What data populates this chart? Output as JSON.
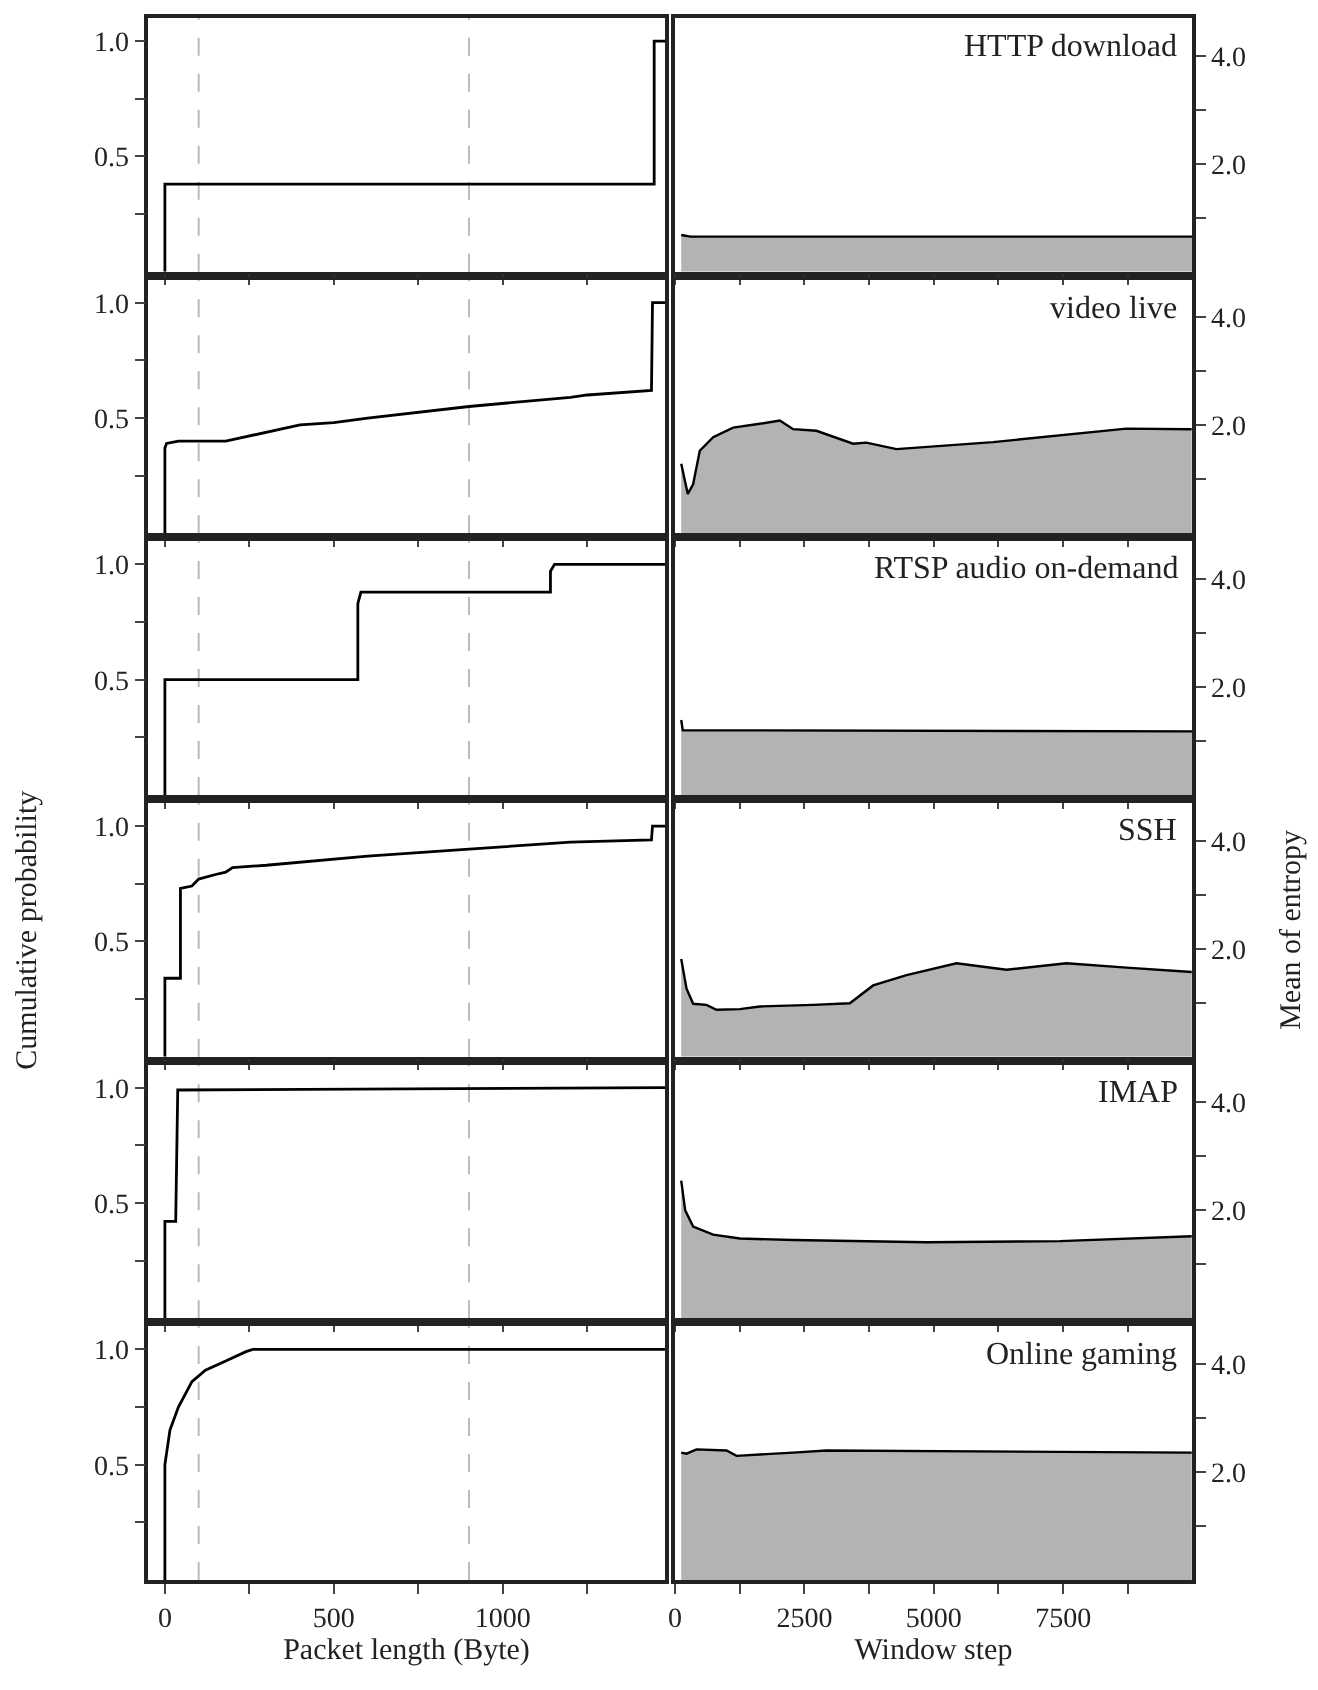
{
  "chart_data": [
    {
      "type": "line",
      "x": [
        0,
        0,
        1448,
        1448,
        1480
      ],
      "values": [
        0,
        0.38,
        0.38,
        1.0,
        1.0
      ],
      "color": "#000000",
      "xlim": [
        -50,
        1480
      ],
      "xticks": [
        0,
        500,
        1000,
        {
          "value": 250,
          "label": null
        },
        {
          "value": 750,
          "label": null
        },
        {
          "value": 1250,
          "label": null
        }
      ],
      "ylim": [
        0,
        1.1
      ],
      "yticks": [
        {
          "value": 0.5,
          "label": "0.5"
        },
        {
          "value": 1,
          "label": "1.0"
        },
        {
          "value": 0.25,
          "label": null
        },
        {
          "value": 0.75,
          "label": null
        }
      ],
      "ref_lines": [
        {
          "axis": "x",
          "value": 100,
          "color": "#bbbbbb",
          "line_style": "dashed"
        },
        {
          "axis": "x",
          "value": 900,
          "color": "#bbbbbb",
          "line_style": "dashed"
        }
      ],
      "tick_labels": "y"
    },
    {
      "type": "area",
      "title": "HTTP download",
      "x": [
        120,
        300,
        9990
      ],
      "values": [
        0.68,
        0.65,
        0.65
      ],
      "color": "#b3b3b3",
      "xlim": [
        0,
        9990
      ],
      "xticks": [
        0,
        2500,
        5000,
        7500,
        {
          "value": 1250,
          "label": null
        },
        {
          "value": 3750,
          "label": null
        },
        {
          "value": 6250,
          "label": null
        },
        {
          "value": 8750,
          "label": null
        }
      ],
      "ylim": [
        0,
        4.7
      ],
      "yticks": [
        {
          "value": 2,
          "label": "2.0"
        },
        {
          "value": 4,
          "label": "4.0"
        },
        {
          "value": 1,
          "label": null
        },
        {
          "value": 3,
          "label": null
        }
      ],
      "tick_labels": "y"
    },
    {
      "type": "line",
      "x": [
        0,
        0,
        5,
        40,
        180,
        400,
        500,
        600,
        900,
        1200,
        1250,
        1440,
        1443,
        1480
      ],
      "values": [
        0,
        0.37,
        0.39,
        0.4,
        0.4,
        0.47,
        0.48,
        0.5,
        0.55,
        0.59,
        0.6,
        0.62,
        1.0,
        1.0
      ],
      "color": "#000000",
      "xlim": [
        -50,
        1480
      ],
      "xticks": [
        0,
        500,
        1000,
        {
          "value": 250,
          "label": null
        },
        {
          "value": 750,
          "label": null
        },
        {
          "value": 1250,
          "label": null
        }
      ],
      "ylim": [
        0,
        1.1
      ],
      "yticks": [
        {
          "value": 0.5,
          "label": "0.5"
        },
        {
          "value": 1,
          "label": "1.0"
        },
        {
          "value": 0.25,
          "label": null
        },
        {
          "value": 0.75,
          "label": null
        }
      ],
      "ref_lines": [
        {
          "axis": "x",
          "value": 100,
          "color": "#bbbbbb",
          "line_style": "dashed"
        },
        {
          "axis": "x",
          "value": 900,
          "color": "#bbbbbb",
          "line_style": "dashed"
        }
      ],
      "tick_labels": "y"
    },
    {
      "type": "area",
      "title": "video live",
      "x": [
        120,
        247,
        350,
        479,
        737,
        1123,
        1638,
        2025,
        2282,
        2733,
        3441,
        3699,
        4278,
        6146,
        8722,
        9984
      ],
      "values": [
        1.29,
        0.73,
        0.91,
        1.53,
        1.78,
        1.96,
        2.03,
        2.09,
        1.93,
        1.9,
        1.66,
        1.68,
        1.56,
        1.69,
        1.94,
        1.93
      ],
      "color": "#b3b3b3",
      "xlim": [
        0,
        9990
      ],
      "xticks": [
        0,
        2500,
        5000,
        7500,
        {
          "value": 1250,
          "label": null
        },
        {
          "value": 3750,
          "label": null
        },
        {
          "value": 6250,
          "label": null
        },
        {
          "value": 8750,
          "label": null
        }
      ],
      "ylim": [
        0,
        4.7
      ],
      "yticks": [
        {
          "value": 2,
          "label": "2.0"
        },
        {
          "value": 4,
          "label": "4.0"
        },
        {
          "value": 1,
          "label": null
        },
        {
          "value": 3,
          "label": null
        }
      ],
      "tick_labels": "y"
    },
    {
      "type": "line",
      "x": [
        0,
        0,
        571,
        571,
        580,
        1141,
        1141,
        1153,
        1480
      ],
      "values": [
        0,
        0.5,
        0.5,
        0.83,
        0.88,
        0.88,
        0.97,
        1.0,
        1.0
      ],
      "color": "#000000",
      "xlim": [
        -50,
        1480
      ],
      "xticks": [
        0,
        500,
        1000,
        {
          "value": 250,
          "label": null
        },
        {
          "value": 750,
          "label": null
        },
        {
          "value": 1250,
          "label": null
        }
      ],
      "ylim": [
        0,
        1.1
      ],
      "yticks": [
        {
          "value": 0.5,
          "label": "0.5"
        },
        {
          "value": 1,
          "label": "1.0"
        },
        {
          "value": 0.25,
          "label": null
        },
        {
          "value": 0.75,
          "label": null
        }
      ],
      "ref_lines": [
        {
          "axis": "x",
          "value": 100,
          "color": "#bbbbbb",
          "line_style": "dashed"
        },
        {
          "axis": "x",
          "value": 900,
          "color": "#bbbbbb",
          "line_style": "dashed"
        }
      ],
      "tick_labels": "y"
    },
    {
      "type": "area",
      "title": "RTSP audio on-demand",
      "x": [
        120,
        150,
        9990
      ],
      "values": [
        1.39,
        1.2,
        1.18
      ],
      "color": "#b3b3b3",
      "xlim": [
        0,
        9990
      ],
      "xticks": [
        0,
        2500,
        5000,
        7500,
        {
          "value": 1250,
          "label": null
        },
        {
          "value": 3750,
          "label": null
        },
        {
          "value": 6250,
          "label": null
        },
        {
          "value": 8750,
          "label": null
        }
      ],
      "ylim": [
        0,
        4.7
      ],
      "yticks": [
        {
          "value": 2,
          "label": "2.0"
        },
        {
          "value": 4,
          "label": "4.0"
        },
        {
          "value": 1,
          "label": null
        },
        {
          "value": 3,
          "label": null
        }
      ],
      "tick_labels": "y"
    },
    {
      "type": "line",
      "ylabel": "Cumulative probability",
      "x": [
        0,
        0,
        46,
        46,
        80,
        100,
        150,
        180,
        200,
        300,
        600,
        900,
        1200,
        1440,
        1443,
        1480
      ],
      "values": [
        0,
        0.34,
        0.34,
        0.73,
        0.74,
        0.77,
        0.79,
        0.8,
        0.82,
        0.83,
        0.87,
        0.9,
        0.93,
        0.94,
        1.0,
        1.0
      ],
      "color": "#000000",
      "xlim": [
        -50,
        1480
      ],
      "xticks": [
        0,
        500,
        1000,
        {
          "value": 250,
          "label": null
        },
        {
          "value": 750,
          "label": null
        },
        {
          "value": 1250,
          "label": null
        }
      ],
      "ylim": [
        0,
        1.1
      ],
      "yticks": [
        {
          "value": 0.5,
          "label": "0.5"
        },
        {
          "value": 1,
          "label": "1.0"
        },
        {
          "value": 0.25,
          "label": null
        },
        {
          "value": 0.75,
          "label": null
        }
      ],
      "ref_lines": [
        {
          "axis": "x",
          "value": 100,
          "color": "#bbbbbb",
          "line_style": "dashed"
        },
        {
          "axis": "x",
          "value": 900,
          "color": "#bbbbbb",
          "line_style": "dashed"
        }
      ],
      "tick_labels": "y"
    },
    {
      "type": "area",
      "title": "SSH",
      "ylabel": "Mean of entropy",
      "x": [
        120,
        223,
        351,
        609,
        802,
        1253,
        1640,
        2670,
        3378,
        3829,
        4473,
        5439,
        6405,
        7564,
        8723,
        9985
      ],
      "values": [
        1.81,
        1.26,
        0.98,
        0.96,
        0.87,
        0.88,
        0.93,
        0.96,
        0.99,
        1.32,
        1.51,
        1.73,
        1.61,
        1.73,
        1.65,
        1.57
      ],
      "color": "#b3b3b3",
      "xlim": [
        0,
        9990
      ],
      "xticks": [
        0,
        2500,
        5000,
        7500,
        {
          "value": 1250,
          "label": null
        },
        {
          "value": 3750,
          "label": null
        },
        {
          "value": 6250,
          "label": null
        },
        {
          "value": 8750,
          "label": null
        }
      ],
      "ylim": [
        0,
        4.7
      ],
      "yticks": [
        {
          "value": 2,
          "label": "2.0"
        },
        {
          "value": 4,
          "label": "4.0"
        },
        {
          "value": 1,
          "label": null
        },
        {
          "value": 3,
          "label": null
        }
      ],
      "tick_labels": "y"
    },
    {
      "type": "line",
      "x": [
        0,
        0,
        32,
        38,
        1480
      ],
      "values": [
        0,
        0.42,
        0.42,
        0.99,
        1.0
      ],
      "color": "#000000",
      "xlim": [
        -50,
        1480
      ],
      "xticks": [
        0,
        500,
        1000,
        {
          "value": 250,
          "label": null
        },
        {
          "value": 750,
          "label": null
        },
        {
          "value": 1250,
          "label": null
        }
      ],
      "ylim": [
        0,
        1.1
      ],
      "yticks": [
        {
          "value": 0.5,
          "label": "0.5"
        },
        {
          "value": 1,
          "label": "1.0"
        },
        {
          "value": 0.25,
          "label": null
        },
        {
          "value": 0.75,
          "label": null
        }
      ],
      "ref_lines": [
        {
          "axis": "x",
          "value": 100,
          "color": "#bbbbbb",
          "line_style": "dashed"
        },
        {
          "axis": "x",
          "value": 900,
          "color": "#bbbbbb",
          "line_style": "dashed"
        }
      ],
      "tick_labels": "y"
    },
    {
      "type": "area",
      "title": "IMAP",
      "x": [
        120,
        197,
        351,
        737,
        1253,
        2283,
        4859,
        7435,
        9985
      ],
      "values": [
        2.55,
        2.0,
        1.7,
        1.55,
        1.48,
        1.45,
        1.41,
        1.43,
        1.52
      ],
      "color": "#b3b3b3",
      "xlim": [
        0,
        9990
      ],
      "xticks": [
        0,
        2500,
        5000,
        7500,
        {
          "value": 1250,
          "label": null
        },
        {
          "value": 3750,
          "label": null
        },
        {
          "value": 6250,
          "label": null
        },
        {
          "value": 8750,
          "label": null
        }
      ],
      "ylim": [
        0,
        4.7
      ],
      "yticks": [
        {
          "value": 2,
          "label": "2.0"
        },
        {
          "value": 4,
          "label": "4.0"
        },
        {
          "value": 1,
          "label": null
        },
        {
          "value": 3,
          "label": null
        }
      ],
      "tick_labels": "y"
    },
    {
      "type": "line",
      "xlabel": "Packet length (Byte)",
      "x": [
        0,
        0,
        5,
        15,
        40,
        80,
        120,
        180,
        240,
        260,
        1480
      ],
      "values": [
        0,
        0.5,
        0.55,
        0.65,
        0.75,
        0.86,
        0.91,
        0.95,
        0.99,
        1.0,
        1.0
      ],
      "color": "#000000",
      "xlim": [
        -50,
        1480
      ],
      "xticks": [
        0,
        500,
        1000,
        {
          "value": 250,
          "label": null
        },
        {
          "value": 750,
          "label": null
        },
        {
          "value": 1250,
          "label": null
        }
      ],
      "ylim": [
        0,
        1.1
      ],
      "yticks": [
        {
          "value": 0.5,
          "label": "0.5"
        },
        {
          "value": 1,
          "label": "1.0"
        },
        {
          "value": 0.25,
          "label": null
        },
        {
          "value": 0.75,
          "label": null
        }
      ],
      "ref_lines": [
        {
          "axis": "x",
          "value": 100,
          "color": "#bbbbbb",
          "line_style": "dashed"
        },
        {
          "axis": "x",
          "value": 900,
          "color": "#bbbbbb",
          "line_style": "dashed"
        }
      ]
    },
    {
      "type": "area",
      "title": "Online gaming",
      "xlabel": "Window step",
      "x": [
        120,
        223,
        416,
        995,
        1189,
        2283,
        2927,
        9985
      ],
      "values": [
        2.36,
        2.34,
        2.42,
        2.4,
        2.3,
        2.36,
        2.4,
        2.36
      ],
      "color": "#b3b3b3",
      "xlim": [
        0,
        9990
      ],
      "xticks": [
        0,
        2500,
        5000,
        7500,
        {
          "value": 1250,
          "label": null
        },
        {
          "value": 3750,
          "label": null
        },
        {
          "value": 6250,
          "label": null
        },
        {
          "value": 8750,
          "label": null
        }
      ],
      "ylim": [
        0,
        4.7
      ],
      "yticks": [
        {
          "value": 2,
          "label": "2.0"
        },
        {
          "value": 4,
          "label": "4.0"
        },
        {
          "value": 1,
          "label": null
        },
        {
          "value": 3,
          "label": null
        }
      ]
    }
  ]
}
